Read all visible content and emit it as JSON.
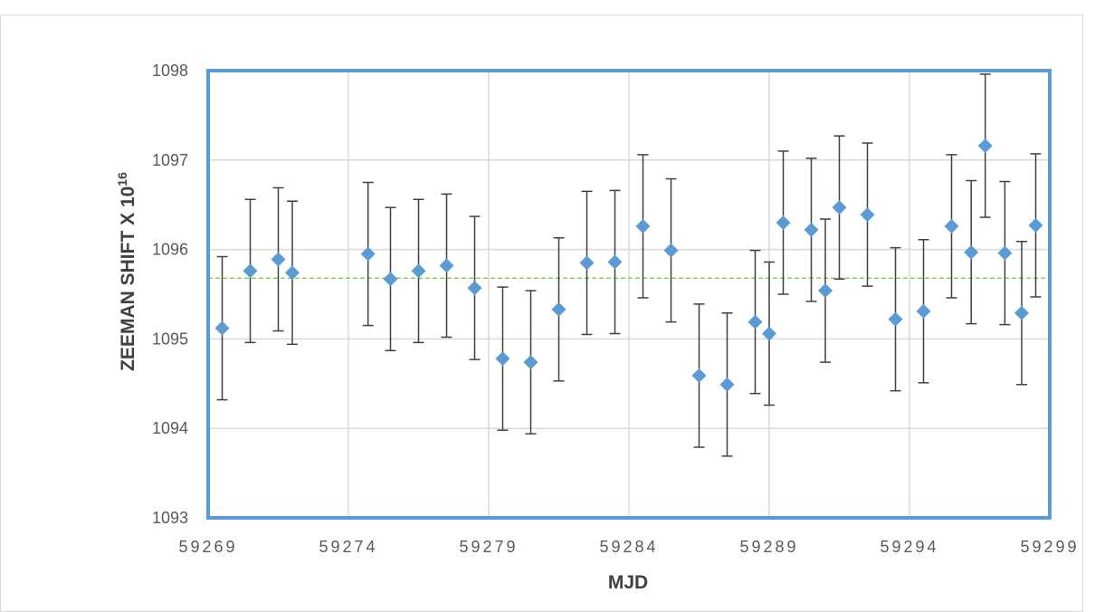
{
  "chart_data": {
    "type": "scatter",
    "title": "",
    "xlabel": "MJD",
    "ylabel_prefix": "ZEEMAN SHIFT X 10",
    "ylabel_exponent": "16",
    "xlim": [
      59269,
      59299
    ],
    "ylim": [
      1093,
      1098
    ],
    "x_ticks": [
      "59269",
      "59274",
      "59279",
      "59284",
      "59289",
      "59294",
      "59299"
    ],
    "y_ticks": [
      "1093",
      "1094",
      "1095",
      "1096",
      "1097",
      "1098"
    ],
    "error_bar": 0.8,
    "mean_line": 1095.68,
    "grid": true,
    "series": [
      {
        "marker": "diamond",
        "points": [
          {
            "x": 59269.5,
            "y": 1095.12
          },
          {
            "x": 59270.5,
            "y": 1095.76
          },
          {
            "x": 59271.5,
            "y": 1095.89
          },
          {
            "x": 59272.0,
            "y": 1095.74
          },
          {
            "x": 59274.7,
            "y": 1095.95
          },
          {
            "x": 59275.5,
            "y": 1095.67
          },
          {
            "x": 59276.5,
            "y": 1095.76
          },
          {
            "x": 59277.5,
            "y": 1095.82
          },
          {
            "x": 59278.5,
            "y": 1095.57
          },
          {
            "x": 59279.5,
            "y": 1094.78
          },
          {
            "x": 59280.5,
            "y": 1094.74
          },
          {
            "x": 59281.5,
            "y": 1095.33
          },
          {
            "x": 59282.5,
            "y": 1095.85
          },
          {
            "x": 59283.5,
            "y": 1095.86
          },
          {
            "x": 59284.5,
            "y": 1096.26
          },
          {
            "x": 59285.5,
            "y": 1095.99
          },
          {
            "x": 59286.5,
            "y": 1094.59
          },
          {
            "x": 59287.5,
            "y": 1094.49
          },
          {
            "x": 59288.5,
            "y": 1095.19
          },
          {
            "x": 59289.0,
            "y": 1095.06
          },
          {
            "x": 59289.5,
            "y": 1096.3
          },
          {
            "x": 59290.5,
            "y": 1096.22
          },
          {
            "x": 59291.0,
            "y": 1095.54
          },
          {
            "x": 59291.5,
            "y": 1096.47
          },
          {
            "x": 59292.5,
            "y": 1096.39
          },
          {
            "x": 59293.5,
            "y": 1095.22
          },
          {
            "x": 59294.5,
            "y": 1095.31
          },
          {
            "x": 59295.5,
            "y": 1096.26
          },
          {
            "x": 59296.2,
            "y": 1095.97
          },
          {
            "x": 59296.7,
            "y": 1097.16
          },
          {
            "x": 59297.4,
            "y": 1095.96
          },
          {
            "x": 59298.0,
            "y": 1095.29
          },
          {
            "x": 59298.5,
            "y": 1096.27
          }
        ]
      }
    ]
  },
  "colors": {
    "marker": "#5b9bd5",
    "plot_border": "#5b9bd5",
    "error_bar": "#404040",
    "mean_line": "#92d050",
    "grid": "#d9d9d9"
  }
}
